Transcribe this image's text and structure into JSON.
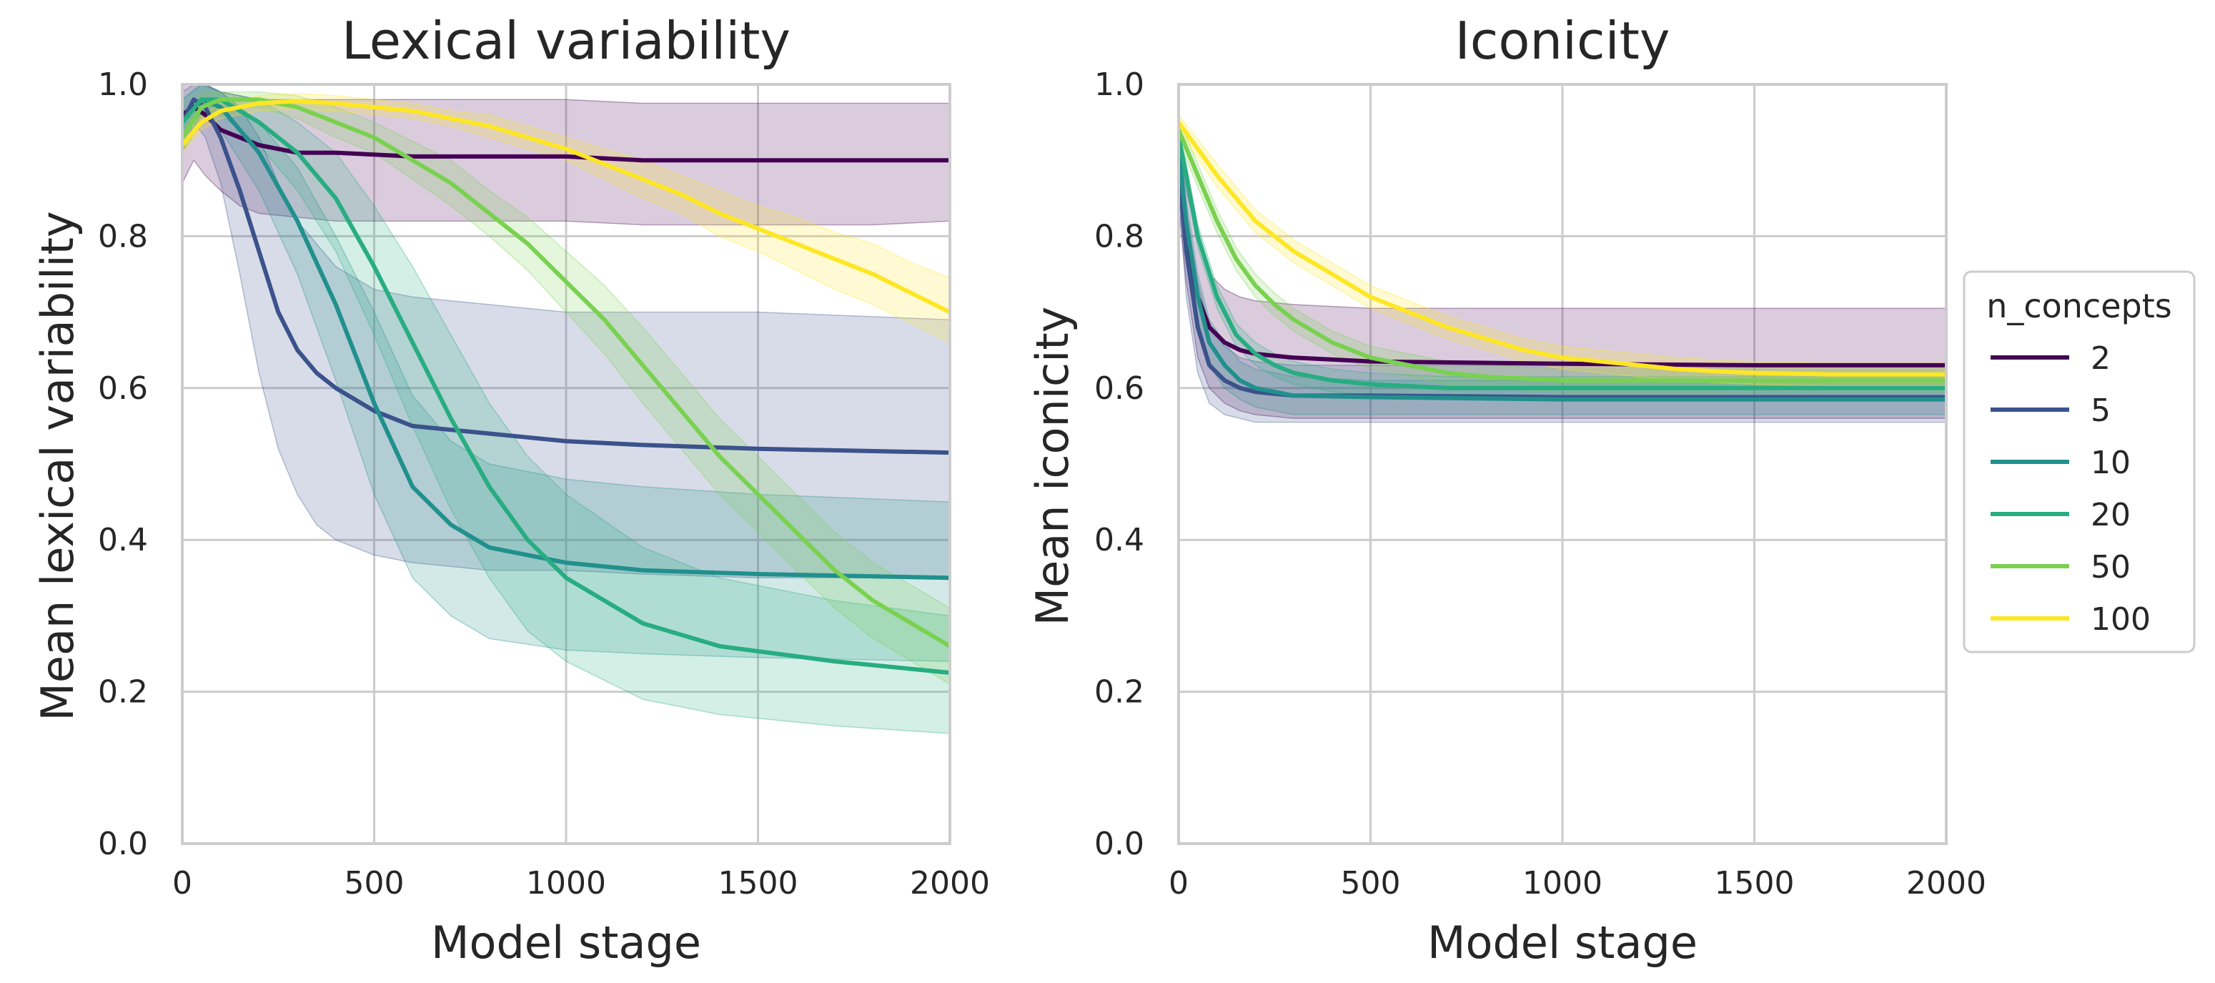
{
  "legend": {
    "title": "n_concepts",
    "placement": "center-right"
  },
  "chart_data": [
    {
      "type": "line",
      "title": "Lexical variability",
      "xlabel": "Model stage",
      "ylabel": "Mean lexical variability",
      "xlim": [
        0,
        2000
      ],
      "ylim": [
        0,
        1
      ],
      "xticks": [
        "0",
        "500",
        "1000",
        "1500",
        "2000"
      ],
      "yticks": [
        "0.0",
        "0.2",
        "0.4",
        "0.6",
        "0.8",
        "1.0"
      ],
      "grid": true,
      "series": [
        {
          "name": "2",
          "color": "#440154",
          "x": [
            0,
            30,
            60,
            100,
            150,
            200,
            300,
            400,
            600,
            800,
            1000,
            1200,
            1500,
            1800,
            2000
          ],
          "y": [
            0.96,
            0.97,
            0.96,
            0.94,
            0.93,
            0.92,
            0.91,
            0.91,
            0.905,
            0.905,
            0.905,
            0.9,
            0.9,
            0.9,
            0.9
          ],
          "lower": [
            0.87,
            0.9,
            0.88,
            0.86,
            0.84,
            0.83,
            0.825,
            0.82,
            0.82,
            0.82,
            0.82,
            0.815,
            0.815,
            0.815,
            0.82
          ],
          "upper": [
            1.0,
            1.0,
            1.0,
            0.99,
            0.985,
            0.98,
            0.98,
            0.98,
            0.98,
            0.98,
            0.98,
            0.975,
            0.975,
            0.975,
            0.975
          ]
        },
        {
          "name": "5",
          "color": "#3b528b",
          "x": [
            0,
            30,
            60,
            100,
            150,
            200,
            250,
            300,
            350,
            400,
            500,
            600,
            800,
            1000,
            1200,
            1500,
            2000
          ],
          "y": [
            0.95,
            0.98,
            0.97,
            0.93,
            0.86,
            0.78,
            0.7,
            0.65,
            0.62,
            0.6,
            0.57,
            0.55,
            0.54,
            0.53,
            0.525,
            0.52,
            0.515
          ],
          "lower": [
            0.91,
            0.95,
            0.93,
            0.87,
            0.75,
            0.62,
            0.52,
            0.46,
            0.42,
            0.4,
            0.38,
            0.37,
            0.36,
            0.36,
            0.355,
            0.35,
            0.35
          ],
          "upper": [
            0.99,
            1.0,
            1.0,
            0.99,
            0.97,
            0.93,
            0.87,
            0.82,
            0.79,
            0.76,
            0.73,
            0.72,
            0.71,
            0.7,
            0.7,
            0.7,
            0.69
          ]
        },
        {
          "name": "10",
          "color": "#21908d",
          "x": [
            0,
            50,
            100,
            200,
            300,
            400,
            500,
            600,
            700,
            800,
            1000,
            1200,
            1500,
            2000
          ],
          "y": [
            0.95,
            0.98,
            0.97,
            0.91,
            0.82,
            0.71,
            0.58,
            0.47,
            0.42,
            0.39,
            0.37,
            0.36,
            0.355,
            0.35
          ],
          "lower": [
            0.92,
            0.96,
            0.94,
            0.86,
            0.75,
            0.61,
            0.46,
            0.35,
            0.3,
            0.27,
            0.255,
            0.25,
            0.245,
            0.24
          ],
          "upper": [
            0.98,
            1.0,
            0.99,
            0.95,
            0.89,
            0.8,
            0.7,
            0.59,
            0.53,
            0.5,
            0.48,
            0.47,
            0.46,
            0.45
          ]
        },
        {
          "name": "20",
          "color": "#27ad81",
          "x": [
            0,
            50,
            100,
            200,
            300,
            400,
            500,
            600,
            700,
            800,
            900,
            1000,
            1200,
            1400,
            1700,
            2000
          ],
          "y": [
            0.95,
            0.98,
            0.98,
            0.95,
            0.91,
            0.85,
            0.76,
            0.66,
            0.56,
            0.47,
            0.4,
            0.35,
            0.29,
            0.26,
            0.24,
            0.225
          ],
          "lower": [
            0.93,
            0.96,
            0.96,
            0.92,
            0.86,
            0.78,
            0.67,
            0.55,
            0.44,
            0.35,
            0.28,
            0.24,
            0.19,
            0.17,
            0.155,
            0.145
          ],
          "upper": [
            0.98,
            1.0,
            0.99,
            0.98,
            0.95,
            0.91,
            0.84,
            0.76,
            0.67,
            0.58,
            0.51,
            0.46,
            0.39,
            0.35,
            0.32,
            0.3
          ]
        },
        {
          "name": "50",
          "color": "#7ad151",
          "x": [
            0,
            50,
            100,
            200,
            300,
            400,
            500,
            600,
            700,
            800,
            900,
            1000,
            1100,
            1200,
            1300,
            1400,
            1500,
            1600,
            1700,
            1800,
            1900,
            2000
          ],
          "y": [
            0.93,
            0.97,
            0.98,
            0.98,
            0.97,
            0.95,
            0.93,
            0.9,
            0.87,
            0.83,
            0.79,
            0.74,
            0.69,
            0.63,
            0.57,
            0.51,
            0.46,
            0.41,
            0.36,
            0.32,
            0.29,
            0.26
          ],
          "lower": [
            0.91,
            0.95,
            0.97,
            0.97,
            0.955,
            0.93,
            0.91,
            0.875,
            0.84,
            0.8,
            0.755,
            0.7,
            0.645,
            0.58,
            0.52,
            0.46,
            0.41,
            0.36,
            0.31,
            0.27,
            0.24,
            0.21
          ],
          "upper": [
            0.95,
            0.99,
            0.99,
            0.99,
            0.985,
            0.97,
            0.95,
            0.925,
            0.9,
            0.86,
            0.825,
            0.78,
            0.735,
            0.68,
            0.62,
            0.56,
            0.51,
            0.46,
            0.41,
            0.37,
            0.34,
            0.31
          ]
        },
        {
          "name": "100",
          "color": "#fde725",
          "x": [
            0,
            50,
            100,
            200,
            300,
            400,
            500,
            600,
            700,
            800,
            900,
            1000,
            1100,
            1200,
            1300,
            1400,
            1500,
            1600,
            1700,
            1800,
            1900,
            2000
          ],
          "y": [
            0.92,
            0.95,
            0.965,
            0.975,
            0.978,
            0.975,
            0.97,
            0.965,
            0.955,
            0.945,
            0.93,
            0.915,
            0.895,
            0.875,
            0.855,
            0.83,
            0.81,
            0.79,
            0.77,
            0.75,
            0.725,
            0.7
          ],
          "lower": [
            0.91,
            0.94,
            0.955,
            0.965,
            0.968,
            0.965,
            0.96,
            0.955,
            0.945,
            0.93,
            0.915,
            0.9,
            0.875,
            0.85,
            0.83,
            0.8,
            0.78,
            0.755,
            0.73,
            0.71,
            0.685,
            0.66
          ],
          "upper": [
            0.93,
            0.96,
            0.975,
            0.985,
            0.988,
            0.985,
            0.98,
            0.975,
            0.965,
            0.96,
            0.945,
            0.93,
            0.915,
            0.9,
            0.88,
            0.86,
            0.84,
            0.825,
            0.805,
            0.79,
            0.765,
            0.745
          ]
        }
      ]
    },
    {
      "type": "line",
      "title": "Iconicity",
      "xlabel": "Model stage",
      "ylabel": "Mean iconicity",
      "xlim": [
        0,
        2000
      ],
      "ylim": [
        0,
        1
      ],
      "xticks": [
        "0",
        "500",
        "1000",
        "1500",
        "2000"
      ],
      "yticks": [
        "0.0",
        "0.2",
        "0.4",
        "0.6",
        "0.8",
        "1.0"
      ],
      "grid": true,
      "series": [
        {
          "name": "2",
          "color": "#440154",
          "x": [
            0,
            20,
            50,
            80,
            120,
            160,
            200,
            300,
            500,
            1000,
            1500,
            2000
          ],
          "y": [
            0.88,
            0.8,
            0.72,
            0.68,
            0.66,
            0.65,
            0.645,
            0.64,
            0.635,
            0.632,
            0.63,
            0.63
          ],
          "lower": [
            0.84,
            0.74,
            0.64,
            0.6,
            0.58,
            0.57,
            0.565,
            0.56,
            0.56,
            0.56,
            0.56,
            0.56
          ],
          "upper": [
            0.92,
            0.86,
            0.8,
            0.75,
            0.73,
            0.72,
            0.715,
            0.71,
            0.705,
            0.705,
            0.705,
            0.705
          ]
        },
        {
          "name": "5",
          "color": "#3b528b",
          "x": [
            0,
            20,
            50,
            80,
            120,
            160,
            200,
            300,
            500,
            1000,
            1500,
            2000
          ],
          "y": [
            0.89,
            0.78,
            0.68,
            0.63,
            0.61,
            0.6,
            0.595,
            0.59,
            0.59,
            0.588,
            0.588,
            0.588
          ],
          "lower": [
            0.86,
            0.72,
            0.62,
            0.58,
            0.565,
            0.56,
            0.555,
            0.555,
            0.555,
            0.555,
            0.555,
            0.555
          ],
          "upper": [
            0.92,
            0.83,
            0.74,
            0.68,
            0.655,
            0.64,
            0.635,
            0.63,
            0.63,
            0.63,
            0.63,
            0.63
          ]
        },
        {
          "name": "10",
          "color": "#21908d",
          "x": [
            0,
            20,
            50,
            80,
            120,
            160,
            200,
            300,
            500,
            1000,
            1500,
            2000
          ],
          "y": [
            0.91,
            0.82,
            0.72,
            0.66,
            0.63,
            0.61,
            0.6,
            0.59,
            0.588,
            0.585,
            0.585,
            0.585
          ],
          "lower": [
            0.89,
            0.79,
            0.69,
            0.63,
            0.6,
            0.585,
            0.575,
            0.565,
            0.565,
            0.565,
            0.565,
            0.565
          ],
          "upper": [
            0.93,
            0.85,
            0.75,
            0.69,
            0.66,
            0.635,
            0.625,
            0.615,
            0.61,
            0.61,
            0.61,
            0.61
          ]
        },
        {
          "name": "20",
          "color": "#27ad81",
          "x": [
            0,
            20,
            50,
            100,
            150,
            200,
            250,
            300,
            400,
            500,
            700,
            1000,
            1500,
            2000
          ],
          "y": [
            0.93,
            0.88,
            0.8,
            0.72,
            0.67,
            0.645,
            0.63,
            0.62,
            0.61,
            0.605,
            0.6,
            0.6,
            0.6,
            0.6
          ],
          "lower": [
            0.915,
            0.865,
            0.785,
            0.705,
            0.655,
            0.63,
            0.615,
            0.605,
            0.595,
            0.59,
            0.585,
            0.585,
            0.585,
            0.585
          ],
          "upper": [
            0.945,
            0.895,
            0.815,
            0.735,
            0.685,
            0.66,
            0.645,
            0.635,
            0.625,
            0.62,
            0.615,
            0.615,
            0.615,
            0.615
          ]
        },
        {
          "name": "50",
          "color": "#7ad151",
          "x": [
            0,
            50,
            100,
            150,
            200,
            250,
            300,
            400,
            500,
            600,
            700,
            800,
            1000,
            1500,
            2000
          ],
          "y": [
            0.94,
            0.88,
            0.82,
            0.77,
            0.735,
            0.71,
            0.69,
            0.66,
            0.64,
            0.63,
            0.62,
            0.615,
            0.61,
            0.61,
            0.61
          ],
          "lower": [
            0.925,
            0.865,
            0.805,
            0.755,
            0.72,
            0.695,
            0.675,
            0.645,
            0.625,
            0.615,
            0.605,
            0.6,
            0.595,
            0.595,
            0.595
          ],
          "upper": [
            0.955,
            0.895,
            0.835,
            0.785,
            0.75,
            0.725,
            0.705,
            0.675,
            0.655,
            0.645,
            0.635,
            0.63,
            0.625,
            0.625,
            0.625
          ]
        },
        {
          "name": "100",
          "color": "#fde725",
          "x": [
            0,
            100,
            200,
            300,
            400,
            500,
            600,
            700,
            800,
            900,
            1000,
            1100,
            1200,
            1300,
            1400,
            1500,
            1700,
            2000
          ],
          "y": [
            0.95,
            0.88,
            0.82,
            0.78,
            0.75,
            0.72,
            0.7,
            0.68,
            0.665,
            0.65,
            0.64,
            0.635,
            0.63,
            0.625,
            0.622,
            0.62,
            0.618,
            0.618
          ],
          "lower": [
            0.94,
            0.865,
            0.805,
            0.765,
            0.735,
            0.705,
            0.685,
            0.665,
            0.65,
            0.635,
            0.625,
            0.62,
            0.615,
            0.61,
            0.607,
            0.605,
            0.603,
            0.603
          ],
          "upper": [
            0.96,
            0.895,
            0.835,
            0.795,
            0.765,
            0.735,
            0.715,
            0.695,
            0.68,
            0.665,
            0.655,
            0.65,
            0.645,
            0.64,
            0.637,
            0.635,
            0.633,
            0.633
          ]
        }
      ]
    }
  ]
}
